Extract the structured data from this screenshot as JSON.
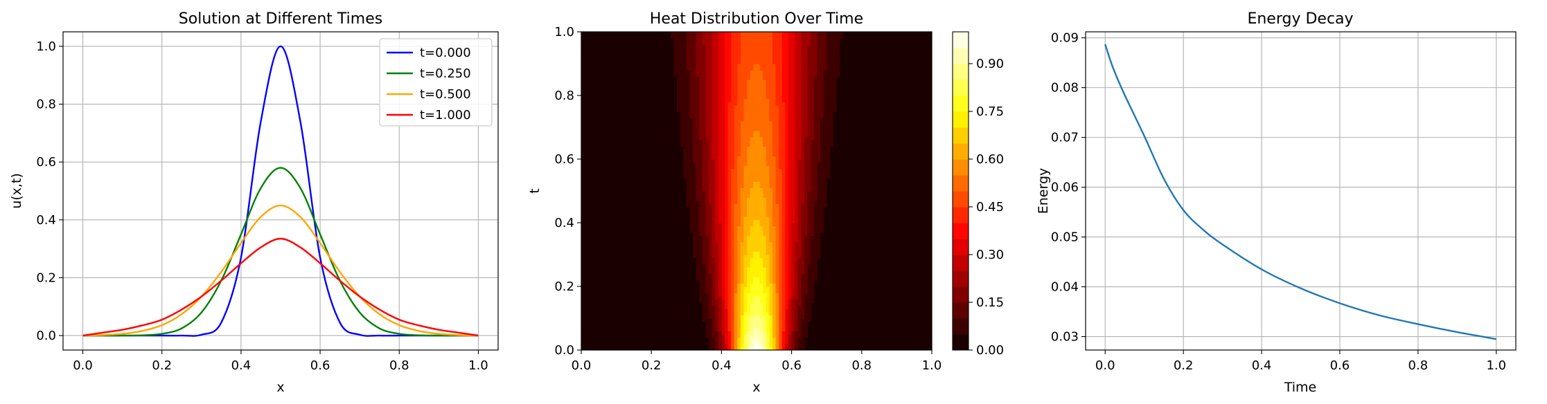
{
  "chart_data": [
    {
      "type": "line",
      "title": "Solution at Different Times",
      "xlabel": "x",
      "ylabel": "u(x,t)",
      "xlim": [
        -0.05,
        1.05
      ],
      "ylim": [
        -0.05,
        1.05
      ],
      "xticks": [
        "0.0",
        "0.2",
        "0.4",
        "0.6",
        "0.8",
        "1.0"
      ],
      "yticks": [
        "0.0",
        "0.2",
        "0.4",
        "0.6",
        "0.8",
        "1.0"
      ],
      "grid": true,
      "legend": "top-right",
      "series": [
        {
          "name": "t=0.000",
          "color": "#0000ff",
          "x": [
            0.0,
            0.05,
            0.1,
            0.15,
            0.2,
            0.25,
            0.3,
            0.35,
            0.4,
            0.45,
            0.5,
            0.55,
            0.6,
            0.65,
            0.7,
            0.75,
            0.8,
            0.85,
            0.9,
            0.95,
            1.0
          ],
          "y": [
            0.0,
            0.0,
            0.0,
            0.0,
            0.0,
            0.0,
            0.003,
            0.045,
            0.27,
            0.74,
            1.0,
            0.74,
            0.27,
            0.045,
            0.003,
            0.0,
            0.0,
            0.0,
            0.0,
            0.0,
            0.0
          ]
        },
        {
          "name": "t=0.250",
          "color": "#008000",
          "x": [
            0.0,
            0.05,
            0.1,
            0.15,
            0.2,
            0.25,
            0.3,
            0.35,
            0.4,
            0.45,
            0.5,
            0.55,
            0.6,
            0.65,
            0.7,
            0.75,
            0.8,
            0.85,
            0.9,
            0.95,
            1.0
          ],
          "y": [
            0.0,
            0.0,
            0.0,
            0.001,
            0.006,
            0.025,
            0.08,
            0.19,
            0.35,
            0.51,
            0.58,
            0.51,
            0.35,
            0.19,
            0.08,
            0.025,
            0.006,
            0.001,
            0.0,
            0.0,
            0.0
          ]
        },
        {
          "name": "t=0.500",
          "color": "#ffa500",
          "x": [
            0.0,
            0.05,
            0.1,
            0.15,
            0.2,
            0.25,
            0.3,
            0.35,
            0.4,
            0.45,
            0.5,
            0.55,
            0.6,
            0.65,
            0.7,
            0.75,
            0.8,
            0.85,
            0.9,
            0.95,
            1.0
          ],
          "y": [
            0.0,
            0.002,
            0.006,
            0.016,
            0.036,
            0.074,
            0.135,
            0.22,
            0.32,
            0.41,
            0.45,
            0.41,
            0.32,
            0.22,
            0.135,
            0.074,
            0.036,
            0.016,
            0.006,
            0.002,
            0.0
          ]
        },
        {
          "name": "t=1.000",
          "color": "#ff0000",
          "x": [
            0.0,
            0.05,
            0.1,
            0.15,
            0.2,
            0.25,
            0.3,
            0.35,
            0.4,
            0.45,
            0.5,
            0.55,
            0.6,
            0.65,
            0.7,
            0.75,
            0.8,
            0.85,
            0.9,
            0.95,
            1.0
          ],
          "y": [
            0.0,
            0.01,
            0.02,
            0.035,
            0.055,
            0.09,
            0.135,
            0.19,
            0.25,
            0.305,
            0.335,
            0.305,
            0.25,
            0.19,
            0.135,
            0.09,
            0.055,
            0.035,
            0.02,
            0.01,
            0.0
          ]
        }
      ]
    },
    {
      "type": "heatmap",
      "title": "Heat Distribution Over Time",
      "xlabel": "x",
      "ylabel": "t",
      "xlim": [
        0.0,
        1.0
      ],
      "ylim": [
        0.0,
        1.0
      ],
      "xticks": [
        "0.0",
        "0.2",
        "0.4",
        "0.6",
        "0.8",
        "1.0"
      ],
      "yticks": [
        "0.0",
        "0.2",
        "0.4",
        "0.6",
        "0.8",
        "1.0"
      ],
      "field": "u(x,t), Gaussian peak at x=0.5 spreading with t",
      "colormap": "hot",
      "colorbar_range": [
        0.0,
        1.0
      ],
      "colorbar_levels": 20,
      "colorbar_ticks": [
        "0.00",
        "0.15",
        "0.30",
        "0.45",
        "0.60",
        "0.75",
        "0.90"
      ]
    },
    {
      "type": "line",
      "title": "Energy Decay",
      "xlabel": "Time",
      "ylabel": "Energy",
      "xlim": [
        -0.05,
        1.05
      ],
      "ylim": [
        0.0273,
        0.0912
      ],
      "xticks": [
        "0.0",
        "0.2",
        "0.4",
        "0.6",
        "0.8",
        "1.0"
      ],
      "yticks": [
        "0.03",
        "0.04",
        "0.05",
        "0.06",
        "0.07",
        "0.08",
        "0.09"
      ],
      "grid": true,
      "series": [
        {
          "color": "#1f77b4",
          "x": [
            0.0,
            0.02,
            0.05,
            0.1,
            0.15,
            0.2,
            0.25,
            0.3,
            0.4,
            0.5,
            0.6,
            0.7,
            0.8,
            0.9,
            1.0
          ],
          "y": [
            0.0887,
            0.084,
            0.0785,
            0.0703,
            0.0617,
            0.0554,
            0.0515,
            0.0485,
            0.0435,
            0.0397,
            0.0367,
            0.0343,
            0.0325,
            0.0309,
            0.0295
          ]
        }
      ]
    }
  ]
}
